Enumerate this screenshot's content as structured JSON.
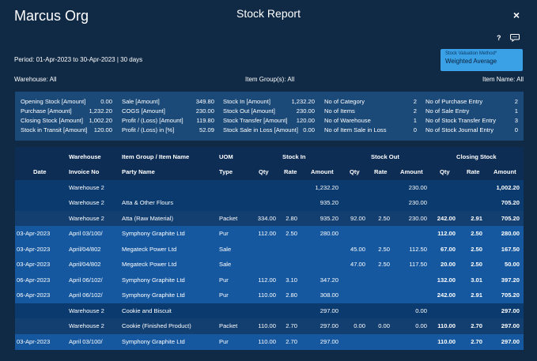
{
  "header": {
    "org": "Marcus Org",
    "title": "Stock Report",
    "close": "×",
    "help": "?"
  },
  "period": "Period: 01-Apr-2023 to 30-Apr-2023 | 30 days",
  "valuation": {
    "label": "Stock Valuation Method*",
    "value": "Weighted Average"
  },
  "filters": {
    "warehouse": "Warehouse: All",
    "item_group": "Item Group(s): All",
    "item_name": "Item Name: All"
  },
  "summary": [
    [
      {
        "label": "Opening Stock [Amount]",
        "value": "0.00"
      },
      {
        "label": "Purchase [Amount]",
        "value": "1,232.20"
      },
      {
        "label": "Closing Stock [Amount]",
        "value": "1,002.20"
      },
      {
        "label": "Stock in Transit [Amount]",
        "value": "120.00"
      }
    ],
    [
      {
        "label": "Sale [Amount]",
        "value": "349.80"
      },
      {
        "label": "COGS [Amount]",
        "value": "230.00"
      },
      {
        "label": "Profit / (Loss) [Amount]",
        "value": "119.80"
      },
      {
        "label": "Profit / (Loss) in [%]",
        "value": "52.09"
      }
    ],
    [
      {
        "label": "Stock In [Amount]",
        "value": "1,232.20"
      },
      {
        "label": "Stock Out [Amount]",
        "value": "230.00"
      },
      {
        "label": "Stock Transfer [Amount]",
        "value": "120.00"
      },
      {
        "label": "Stock Sale in Loss [Amount]",
        "value": "0.00"
      }
    ],
    [
      {
        "label": "No of Category",
        "value": "2"
      },
      {
        "label": "No of Items",
        "value": "2"
      },
      {
        "label": "No of Warehouse",
        "value": "1"
      },
      {
        "label": "No of Item Sale in Loss",
        "value": "0"
      }
    ],
    [
      {
        "label": "No of Purchase Entry",
        "value": "2"
      },
      {
        "label": "No of Sale Entry",
        "value": "1"
      },
      {
        "label": "No of Stock Transfer Entry",
        "value": "3"
      },
      {
        "label": "No of Stock Journal Entry",
        "value": "0"
      }
    ]
  ],
  "table": {
    "group_headers": {
      "warehouse": "Warehouse",
      "item": "Item Group / Item Name",
      "uom": "UOM",
      "stock_in": "Stock In",
      "stock_out": "Stock Out",
      "closing": "Closing Stock"
    },
    "columns": {
      "date": "Date",
      "invoice": "Invoice No",
      "party": "Party Name",
      "type": "Type",
      "qty": "Qty",
      "rate": "Rate",
      "amount": "Amount"
    },
    "rows": [
      {
        "kind": "group",
        "date": "",
        "invoice": "Warehouse 2",
        "party": "",
        "type": "",
        "in_qty": "",
        "in_rate": "",
        "in_amt": "1,232.20",
        "out_qty": "",
        "out_rate": "",
        "out_amt": "230.00",
        "cl_qty": "",
        "cl_rate": "",
        "cl_amt": "1,002.20"
      },
      {
        "kind": "group",
        "date": "",
        "invoice": "Warehouse 2",
        "party": "Atta & Other Flours",
        "type": "",
        "in_qty": "",
        "in_rate": "",
        "in_amt": "935.20",
        "out_qty": "",
        "out_rate": "",
        "out_amt": "230.00",
        "cl_qty": "",
        "cl_rate": "",
        "cl_amt": "705.20"
      },
      {
        "kind": "item",
        "date": "",
        "invoice": "Warehouse 2",
        "party": "Atta (Raw Material)",
        "type": "Packet",
        "in_qty": "334.00",
        "in_rate": "2.80",
        "in_amt": "935.20",
        "out_qty": "92.00",
        "out_rate": "2.50",
        "out_amt": "230.00",
        "cl_qty": "242.00",
        "cl_rate": "2.91",
        "cl_amt": "705.20"
      },
      {
        "kind": "detail",
        "date": "03-Apr-2023",
        "invoice": "April 03/100/",
        "party": "Symphony Graphite Ltd",
        "type": "Pur",
        "in_qty": "112.00",
        "in_rate": "2.50",
        "in_amt": "280.00",
        "out_qty": "",
        "out_rate": "",
        "out_amt": "",
        "cl_qty": "112.00",
        "cl_rate": "2.50",
        "cl_amt": "280.00"
      },
      {
        "kind": "detail",
        "date": "03-Apr-2023",
        "invoice": "April/04/802",
        "party": "Megateck Power Ltd",
        "type": "Sale",
        "in_qty": "",
        "in_rate": "",
        "in_amt": "",
        "out_qty": "45.00",
        "out_rate": "2.50",
        "out_amt": "112.50",
        "cl_qty": "67.00",
        "cl_rate": "2.50",
        "cl_amt": "167.50"
      },
      {
        "kind": "detail",
        "date": "03-Apr-2023",
        "invoice": "April/04/802",
        "party": "Megateck Power Ltd",
        "type": "Sale",
        "in_qty": "",
        "in_rate": "",
        "in_amt": "",
        "out_qty": "47.00",
        "out_rate": "2.50",
        "out_amt": "117.50",
        "cl_qty": "20.00",
        "cl_rate": "2.50",
        "cl_amt": "50.00"
      },
      {
        "kind": "detail",
        "date": "06-Apr-2023",
        "invoice": "April 06/102/",
        "party": "Symphony Graphite Ltd",
        "type": "Pur",
        "in_qty": "112.00",
        "in_rate": "3.10",
        "in_amt": "347.20",
        "out_qty": "",
        "out_rate": "",
        "out_amt": "",
        "cl_qty": "132.00",
        "cl_rate": "3.01",
        "cl_amt": "397.20"
      },
      {
        "kind": "detail",
        "date": "06-Apr-2023",
        "invoice": "April 06/102/",
        "party": "Symphony Graphite Ltd",
        "type": "Pur",
        "in_qty": "110.00",
        "in_rate": "2.80",
        "in_amt": "308.00",
        "out_qty": "",
        "out_rate": "",
        "out_amt": "",
        "cl_qty": "242.00",
        "cl_rate": "2.91",
        "cl_amt": "705.20"
      },
      {
        "kind": "group",
        "date": "",
        "invoice": "Warehouse 2",
        "party": "Cookie and Biscuit",
        "type": "",
        "in_qty": "",
        "in_rate": "",
        "in_amt": "297.00",
        "out_qty": "",
        "out_rate": "",
        "out_amt": "0.00",
        "cl_qty": "",
        "cl_rate": "",
        "cl_amt": "297.00"
      },
      {
        "kind": "item",
        "date": "",
        "invoice": "Warehouse 2",
        "party": "Cookie (Finished Product)",
        "type": "Packet",
        "in_qty": "110.00",
        "in_rate": "2.70",
        "in_amt": "297.00",
        "out_qty": "0.00",
        "out_rate": "0.00",
        "out_amt": "0.00",
        "cl_qty": "110.00",
        "cl_rate": "2.70",
        "cl_amt": "297.00"
      },
      {
        "kind": "detail",
        "date": "03-Apr-2023",
        "invoice": "April 03/100/",
        "party": "Symphony Graphite Ltd",
        "type": "Pur",
        "in_qty": "110.00",
        "in_rate": "2.70",
        "in_amt": "297.00",
        "out_qty": "",
        "out_rate": "",
        "out_amt": "",
        "cl_qty": "110.00",
        "cl_rate": "2.70",
        "cl_amt": "297.00"
      }
    ]
  },
  "colors": {
    "background": "#102a46",
    "summary": "#1b4a79",
    "valuation": "#3aa1e6",
    "detail_row": "#1558a0"
  }
}
